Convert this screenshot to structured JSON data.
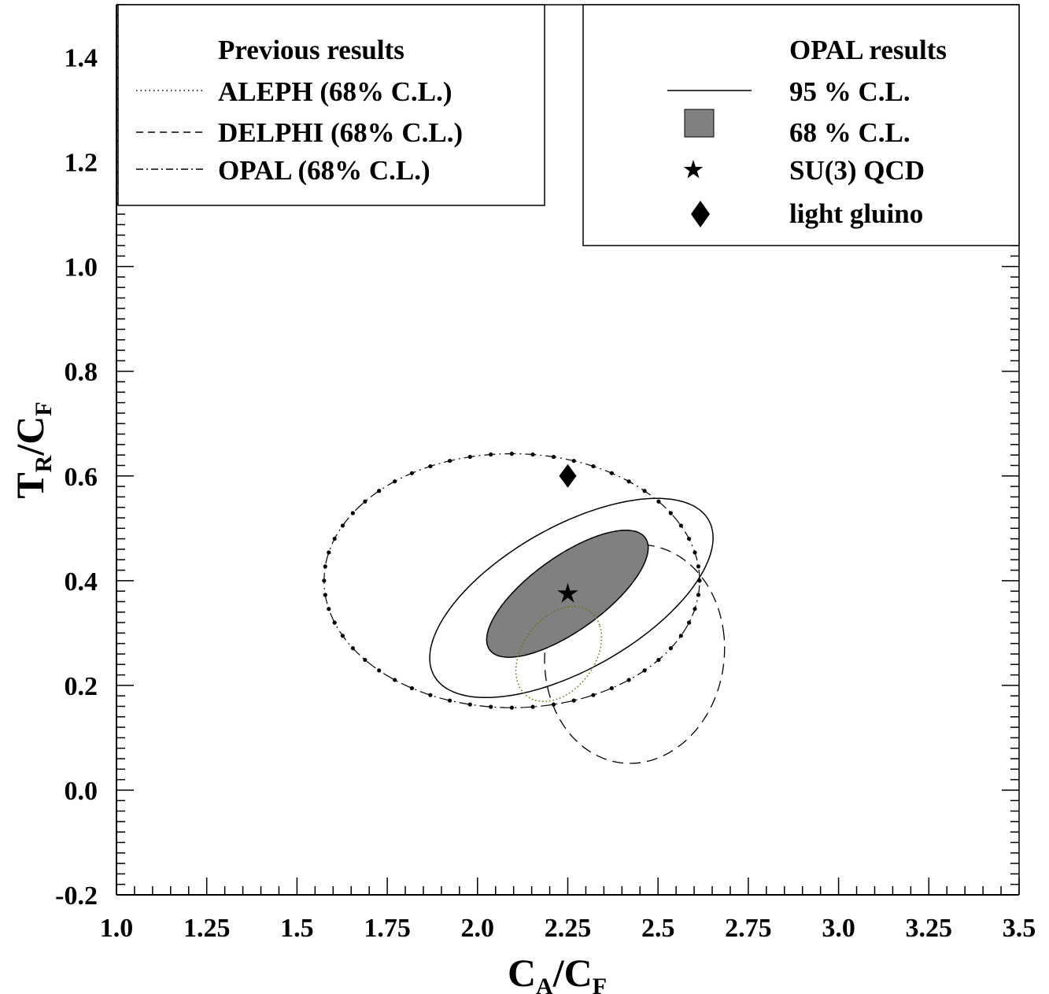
{
  "chart_data": {
    "type": "scatter",
    "xlabel": "C_A/C_F",
    "ylabel": "T_R/C_F",
    "xlim": [
      1.0,
      3.5
    ],
    "ylim": [
      -0.2,
      1.5
    ],
    "x_ticks": [
      "1.0",
      "1.25",
      "1.5",
      "1.75",
      "2.0",
      "2.25",
      "2.5",
      "2.75",
      "3.0",
      "3.25",
      "3.5"
    ],
    "y_ticks": [
      "-0.2",
      "0.0",
      "0.2",
      "0.4",
      "0.6",
      "0.8",
      "1.0",
      "1.2",
      "1.4"
    ],
    "legend_left": {
      "title": "Previous results",
      "entries": [
        {
          "label": "ALEPH (68% C.L.)",
          "style": "dotted"
        },
        {
          "label": "DELPHI (68% C.L.)",
          "style": "dashed"
        },
        {
          "label": "OPAL (68% C.L.)",
          "style": "dash-dot"
        }
      ],
      "position": "top-left"
    },
    "legend_right": {
      "title": "OPAL results",
      "entries": [
        {
          "label": "95 % C.L.",
          "style": "solid"
        },
        {
          "label": "68 % C.L.",
          "style": "filled"
        },
        {
          "label": "SU(3) QCD",
          "style": "star"
        },
        {
          "label": "light gluino",
          "style": "diamond"
        }
      ],
      "position": "top-right"
    },
    "points": [
      {
        "name": "SU(3) QCD",
        "x": 2.25,
        "y": 0.375,
        "marker": "star"
      },
      {
        "name": "light gluino",
        "x": 2.25,
        "y": 0.6,
        "marker": "diamond"
      }
    ],
    "contours": [
      {
        "name": "OPAL 68 % C.L.",
        "style": "filled",
        "color": "#808080",
        "cx": 2.249,
        "cy": 0.375,
        "a": 0.2424,
        "b": 0.0773,
        "angle_deg": 24.0
      },
      {
        "name": "OPAL 95 % C.L.",
        "style": "solid",
        "cx": 2.26,
        "cy": 0.367,
        "a": 0.4113,
        "b": 0.1447,
        "angle_deg": 18.7
      },
      {
        "name": "ALEPH (68% C.L.)",
        "style": "dotted",
        "color": "#6b6b00",
        "cx": 2.225,
        "cy": 0.26,
        "a": 0.126,
        "b": 0.08,
        "angle_deg": 26.0
      },
      {
        "name": "DELPHI (68% C.L.)",
        "style": "dashed",
        "cx": 2.435,
        "cy": 0.26,
        "a": 0.25,
        "b": 0.208,
        "angle_deg": 8.0
      },
      {
        "name": "OPAL (68% C.L.)",
        "style": "dash-dot",
        "cx": 2.095,
        "cy": 0.4,
        "a": 0.52,
        "b": 0.2425,
        "angle_deg": 0.0
      }
    ],
    "grid": false
  }
}
